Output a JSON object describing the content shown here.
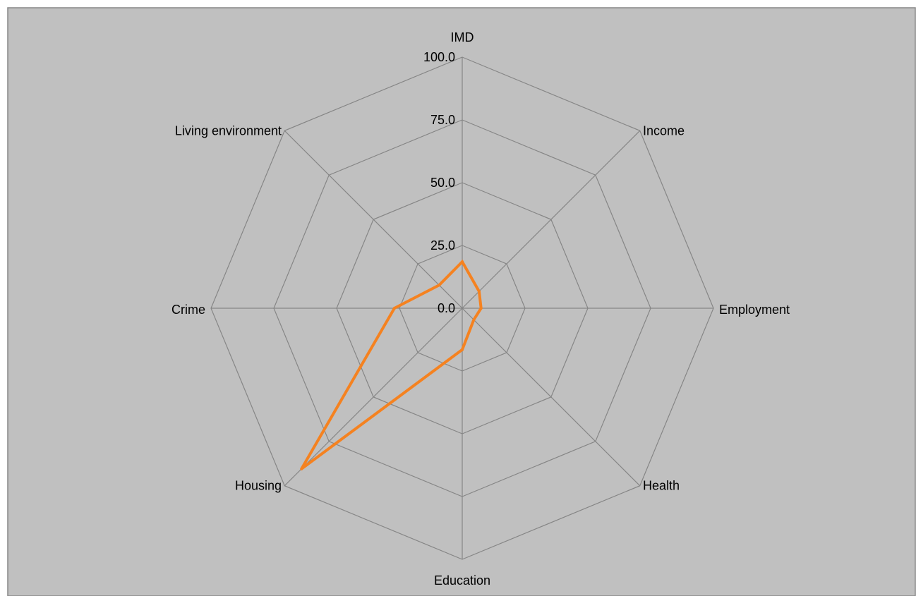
{
  "chart_data": {
    "type": "radar",
    "title": "",
    "axes": [
      "IMD",
      "Income",
      "Employment",
      "Health",
      "Education",
      "Housing",
      "Crime",
      "Living environment"
    ],
    "ticks": [
      "0.0",
      "25.0",
      "50.0",
      "75.0",
      "100.0"
    ],
    "range": [
      0,
      100
    ],
    "grid": true,
    "legend": "none",
    "series": [
      {
        "values": [
          18.5,
          9.5,
          7.5,
          6.5,
          16.5,
          90.5,
          27.0,
          13.0
        ]
      }
    ]
  },
  "colors": {
    "plot_background": "#c0c0c0",
    "gridline": "#868686",
    "series": "#f58220",
    "border": "#868686"
  }
}
